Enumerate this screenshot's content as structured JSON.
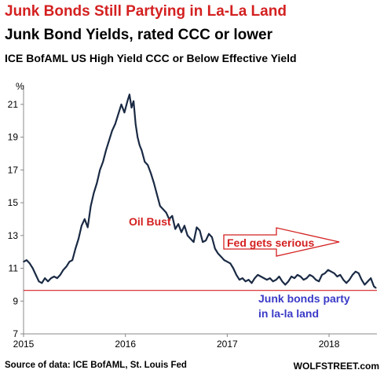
{
  "chart_data": {
    "type": "line",
    "title": "Junk Bonds Still Partying in La-La Land",
    "subtitle": "Junk Bond Yields, rated CCC or lower",
    "series_title": "ICE BofAML US High Yield CCC or Below Effective Yield",
    "ylabel": "%",
    "ylim": [
      7,
      22
    ],
    "yticks": [
      7,
      9,
      11,
      13,
      15,
      17,
      19,
      21
    ],
    "xlim": [
      2015.0,
      2018.47
    ],
    "xticks": [
      2015,
      2016,
      2017,
      2018
    ],
    "grid": false,
    "reference_line": 9.65,
    "annotations": {
      "oil_bust": "Oil Bust",
      "fed": "Fed gets serious",
      "party_line1": "Junk bonds party",
      "party_line2": "in la-la land"
    },
    "colors": {
      "line": "#1a2a44",
      "accent": "#d42020",
      "party": "#3a3ac8"
    },
    "series": [
      {
        "x": [
          2015.0,
          2015.03,
          2015.06,
          2015.09,
          2015.12,
          2015.15,
          2015.18,
          2015.21,
          2015.24,
          2015.27,
          2015.3,
          2015.33,
          2015.36,
          2015.39,
          2015.42,
          2015.45,
          2015.48,
          2015.51,
          2015.54,
          2015.57,
          2015.6,
          2015.63,
          2015.66,
          2015.69,
          2015.72,
          2015.75,
          2015.78,
          2015.81,
          2015.84,
          2015.87,
          2015.9,
          2015.93,
          2015.96,
          2015.99,
          2016.02,
          2016.04,
          2016.06,
          2016.08,
          2016.1,
          2016.12,
          2016.14,
          2016.16,
          2016.19,
          2016.22,
          2016.25,
          2016.28,
          2016.31,
          2016.34,
          2016.37,
          2016.4,
          2016.43,
          2016.46,
          2016.49,
          2016.52,
          2016.55,
          2016.58,
          2016.61,
          2016.64,
          2016.67,
          2016.7,
          2016.73,
          2016.76,
          2016.79,
          2016.82,
          2016.85,
          2016.88,
          2016.91,
          2016.94,
          2016.97,
          2017.0,
          2017.03,
          2017.06,
          2017.09,
          2017.12,
          2017.15,
          2017.18,
          2017.21,
          2017.24,
          2017.27,
          2017.3,
          2017.33,
          2017.36,
          2017.39,
          2017.42,
          2017.45,
          2017.48,
          2017.51,
          2017.54,
          2017.57,
          2017.6,
          2017.63,
          2017.66,
          2017.69,
          2017.72,
          2017.75,
          2017.78,
          2017.81,
          2017.84,
          2017.87,
          2017.9,
          2017.93,
          2017.96,
          2017.99,
          2018.02,
          2018.05,
          2018.08,
          2018.11,
          2018.14,
          2018.17,
          2018.2,
          2018.23,
          2018.26,
          2018.29,
          2018.32,
          2018.35,
          2018.38,
          2018.41,
          2018.44,
          2018.46
        ],
        "values": [
          11.4,
          11.5,
          11.3,
          11.0,
          10.6,
          10.2,
          10.1,
          10.4,
          10.2,
          10.4,
          10.5,
          10.4,
          10.6,
          10.9,
          11.1,
          11.4,
          11.5,
          12.2,
          12.8,
          13.6,
          14.0,
          13.5,
          14.8,
          15.6,
          16.2,
          17.0,
          17.5,
          18.2,
          18.8,
          19.4,
          19.8,
          20.4,
          21.0,
          20.5,
          21.2,
          21.6,
          20.8,
          21.2,
          19.8,
          19.0,
          18.5,
          18.2,
          17.5,
          17.3,
          16.8,
          16.2,
          15.5,
          14.8,
          14.6,
          14.4,
          14.0,
          14.2,
          13.4,
          13.7,
          13.2,
          13.6,
          13.0,
          12.8,
          12.6,
          13.5,
          13.3,
          12.6,
          12.7,
          13.1,
          12.9,
          12.2,
          11.9,
          11.7,
          11.5,
          11.4,
          11.3,
          11.0,
          10.6,
          10.3,
          10.4,
          10.2,
          10.3,
          10.1,
          10.4,
          10.6,
          10.5,
          10.4,
          10.3,
          10.4,
          10.2,
          10.3,
          10.5,
          10.2,
          10.0,
          10.2,
          10.5,
          10.4,
          10.6,
          10.5,
          10.3,
          10.4,
          10.6,
          10.5,
          10.3,
          10.2,
          10.6,
          10.7,
          10.9,
          10.8,
          10.7,
          10.5,
          10.6,
          10.3,
          10.1,
          10.3,
          10.6,
          10.8,
          10.7,
          10.3,
          10.0,
          10.2,
          10.4,
          9.9,
          9.8
        ]
      }
    ]
  },
  "source": "Source of data: ICE BofAML, St. Louis Fed",
  "brand": "WOLFSTREET.com"
}
